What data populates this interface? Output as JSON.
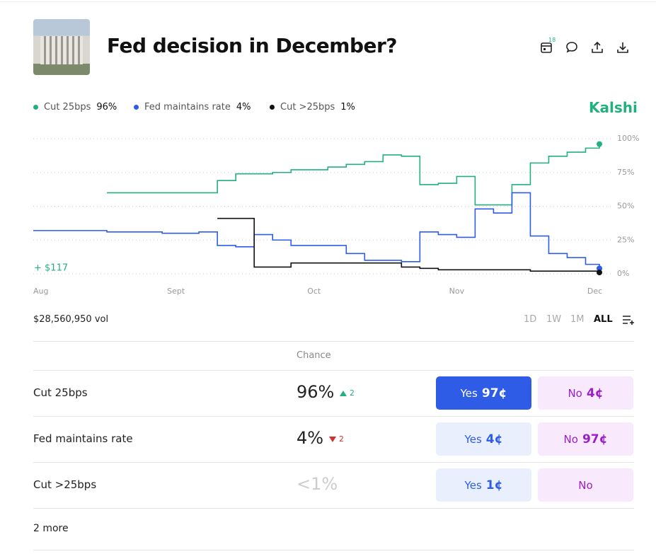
{
  "header": {
    "title": "Fed decision in December?",
    "calendar_badge": "18",
    "brand": "Kalshi"
  },
  "chart_data": {
    "type": "line",
    "step": true,
    "grid": true,
    "annotation": "+ $117",
    "x": [
      0,
      4,
      8,
      12,
      16,
      20,
      24,
      28,
      32,
      36,
      40,
      44,
      48,
      52,
      56,
      60,
      64,
      68,
      72,
      76,
      80,
      84,
      88,
      92,
      96,
      100,
      104,
      108,
      112,
      116,
      120,
      123
    ],
    "xlim": [
      0,
      123
    ],
    "xticks": [
      {
        "value": 0,
        "label": "Aug"
      },
      {
        "value": 31,
        "label": "Sept"
      },
      {
        "value": 61,
        "label": "Oct"
      },
      {
        "value": 92,
        "label": "Nov"
      },
      {
        "value": 122,
        "label": "Dec"
      }
    ],
    "ylim": [
      0,
      100
    ],
    "yticks": [
      {
        "value": 0,
        "label": "0%"
      },
      {
        "value": 25,
        "label": "25%"
      },
      {
        "value": 50,
        "label": "50%"
      },
      {
        "value": 75,
        "label": "75%"
      },
      {
        "value": 100,
        "label": "100%"
      }
    ],
    "series": [
      {
        "name": "Cut 25bps",
        "label": "96%",
        "color": "#22b07d",
        "values": [
          null,
          null,
          null,
          null,
          60,
          60,
          60,
          60,
          60,
          60,
          69,
          74,
          74,
          75,
          77,
          77,
          79,
          81,
          83,
          88,
          87,
          66,
          67,
          72,
          51,
          51,
          66,
          82,
          87,
          90,
          93,
          96
        ]
      },
      {
        "name": "Fed maintains rate",
        "label": "4%",
        "color": "#2e5ce6",
        "values": [
          32,
          32,
          32,
          32,
          31,
          31,
          31,
          30,
          30,
          31,
          21,
          20,
          29,
          25,
          21,
          21,
          21,
          15,
          10,
          10,
          9,
          31,
          29,
          27,
          48,
          45,
          60,
          28,
          15,
          12,
          7,
          4
        ]
      },
      {
        "name": "Cut >25bps",
        "label": "1%",
        "color": "#111111",
        "values": [
          null,
          null,
          null,
          null,
          null,
          null,
          null,
          null,
          null,
          null,
          41,
          41,
          5,
          5,
          8,
          8,
          8,
          8,
          8,
          8,
          5,
          4,
          3,
          3,
          3,
          3,
          3,
          2,
          2,
          2,
          2,
          1
        ]
      }
    ]
  },
  "volume": "$28,560,950 vol",
  "ranges": [
    "1D",
    "1W",
    "1M",
    "ALL"
  ],
  "table": {
    "header": "Chance",
    "rows": [
      {
        "name": "Cut 25bps",
        "chance": "96%",
        "trend": "up",
        "change": "2",
        "yes": "Yes",
        "yes_price": "97¢",
        "no": "No",
        "no_price": "4¢"
      },
      {
        "name": "Fed maintains rate",
        "chance": "4%",
        "trend": "down",
        "change": "2",
        "yes": "Yes",
        "yes_price": "4¢",
        "no": "No",
        "no_price": "97¢"
      },
      {
        "name": "Cut >25bps",
        "chance": "<1%",
        "yes": "Yes",
        "yes_price": "1¢",
        "no": "No"
      }
    ]
  },
  "more": "2 more"
}
